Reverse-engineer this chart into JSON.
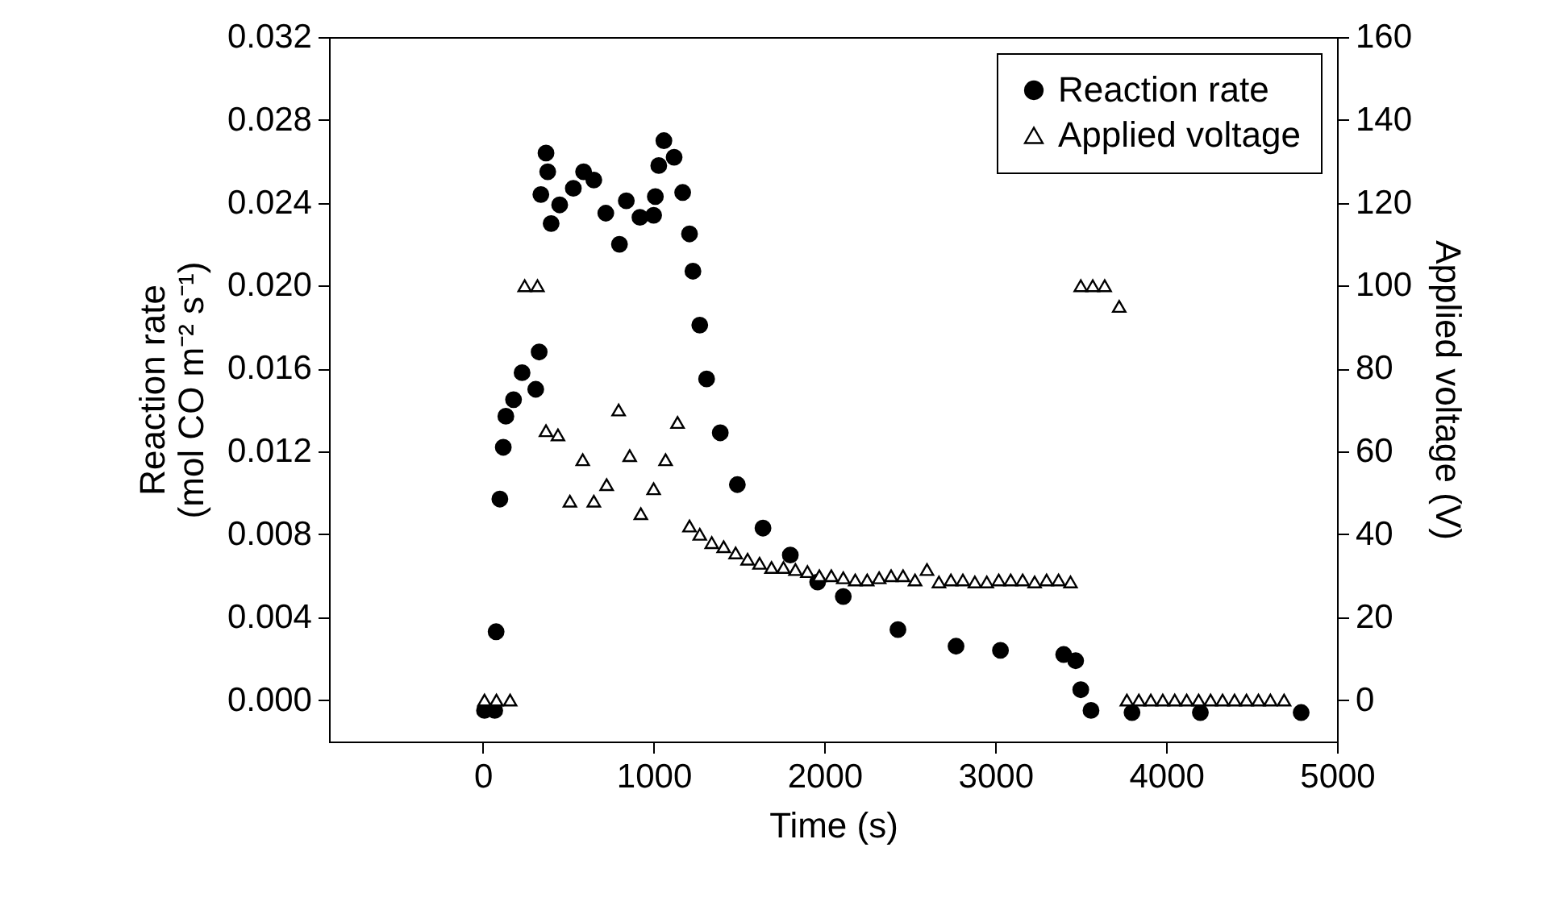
{
  "chart_data": {
    "type": "scatter",
    "xlabel": "Time (s)",
    "ylabel": "Reaction rate\n(mol CO m⁻² s⁻¹)",
    "y2label": "Applied voltage (V)",
    "xlim": [
      -900,
      5000
    ],
    "xticks": [
      0,
      1000,
      2000,
      3000,
      4000,
      5000
    ],
    "ylim": [
      -0.002,
      0.032
    ],
    "yticks": [
      {
        "value": 0,
        "label": "0.000"
      },
      {
        "value": 0.004,
        "label": "0.004"
      },
      {
        "value": 0.008,
        "label": "0.008"
      },
      {
        "value": 0.012,
        "label": "0.012"
      },
      {
        "value": 0.016,
        "label": "0.016"
      },
      {
        "value": 0.02,
        "label": "0.020"
      },
      {
        "value": 0.024,
        "label": "0.024"
      },
      {
        "value": 0.028,
        "label": "0.028"
      },
      {
        "value": 0.032,
        "label": "0.032"
      }
    ],
    "y2lim": [
      -10,
      160
    ],
    "y2ticks": [
      0,
      20,
      40,
      60,
      80,
      100,
      120,
      140,
      160
    ],
    "legend": "top right",
    "grid": false,
    "series": [
      {
        "name": "Reaction rate",
        "color": "#000000",
        "marker": "circle",
        "x": [
          10,
          70,
          78,
          100,
          120,
          135,
          180,
          230,
          310,
          330,
          340,
          370,
          380,
          400,
          450,
          530,
          590,
          650,
          720,
          800,
          840,
          920,
          1000,
          1010,
          1030,
          1060,
          1120,
          1170,
          1210,
          1230,
          1270,
          1310,
          1390,
          1490,
          1640,
          1800,
          1960,
          2110,
          2430,
          2770,
          3030,
          3400,
          3470,
          3500,
          3560,
          3800,
          4200,
          4790
        ],
        "values": [
          -0.0005,
          -0.0005,
          0.0033,
          0.0097,
          0.0122,
          0.0137,
          0.0145,
          0.0158,
          0.015,
          0.0168,
          0.0244,
          0.0264,
          0.0255,
          0.023,
          0.0239,
          0.0247,
          0.0255,
          0.0251,
          0.0235,
          0.022,
          0.0241,
          0.0233,
          0.0234,
          0.0243,
          0.0258,
          0.027,
          0.0262,
          0.0245,
          0.0225,
          0.0207,
          0.0181,
          0.0155,
          0.0129,
          0.0104,
          0.0083,
          0.007,
          0.0057,
          0.005,
          0.0034,
          0.0026,
          0.0024,
          0.0022,
          0.0019,
          0.0005,
          -0.0005,
          -0.0006,
          -0.0006,
          -0.0006
        ]
      },
      {
        "name": "Applied voltage",
        "color": "#000000",
        "marker": "triangle",
        "axis": "y2",
        "x": [
          10,
          80,
          160,
          245,
          320,
          370,
          440,
          510,
          585,
          650,
          725,
          795,
          860,
          925,
          1000,
          1070,
          1140,
          1210,
          1270,
          1340,
          1410,
          1480,
          1550,
          1620,
          1690,
          1760,
          1830,
          1900,
          1970,
          2040,
          2110,
          2180,
          2250,
          2320,
          2390,
          2460,
          2530,
          2600,
          2670,
          2740,
          2810,
          2880,
          2950,
          3020,
          3090,
          3160,
          3230,
          3300,
          3370,
          3440,
          3500,
          3570,
          3640,
          3725,
          3770,
          3840,
          3910,
          3980,
          4050,
          4120,
          4190,
          4260,
          4330,
          4400,
          4470,
          4540,
          4610,
          4690
        ],
        "values": [
          0,
          0,
          0,
          100,
          100,
          65,
          64,
          48,
          58,
          48,
          52,
          70,
          59,
          45,
          51,
          58,
          67,
          42,
          40,
          38,
          37,
          35.5,
          34,
          33,
          32,
          32,
          31.5,
          31,
          30,
          30,
          29.5,
          29,
          29,
          29.5,
          30,
          30,
          29,
          31.5,
          28.5,
          29,
          29,
          28.5,
          28.5,
          29,
          29,
          29,
          28.5,
          29,
          29,
          28.5,
          100,
          100,
          100,
          95,
          0,
          0,
          0,
          0,
          0,
          0,
          0,
          0,
          0,
          0,
          0,
          0,
          0,
          0
        ]
      }
    ]
  }
}
